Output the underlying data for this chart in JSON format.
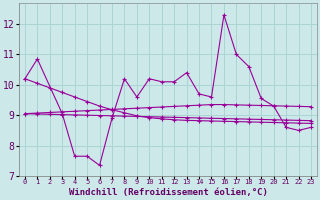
{
  "x": [
    0,
    1,
    2,
    3,
    4,
    5,
    6,
    7,
    8,
    9,
    10,
    11,
    12,
    13,
    14,
    15,
    16,
    17,
    18,
    19,
    20,
    21,
    22,
    23
  ],
  "y_main": [
    10.2,
    10.85,
    null,
    9.05,
    7.65,
    7.65,
    7.35,
    8.9,
    10.2,
    9.6,
    10.2,
    10.1,
    10.1,
    10.4,
    9.7,
    9.6,
    12.3,
    11.0,
    10.6,
    9.55,
    9.3,
    8.6,
    8.5,
    8.6
  ],
  "y_trend1": [
    10.2,
    10.05,
    9.9,
    9.75,
    9.6,
    9.45,
    9.3,
    9.18,
    9.08,
    8.98,
    8.92,
    8.88,
    8.85,
    8.83,
    8.82,
    8.81,
    8.8,
    8.79,
    8.78,
    8.77,
    8.76,
    8.75,
    8.74,
    8.73
  ],
  "y_trend2": [
    9.05,
    9.07,
    9.09,
    9.11,
    9.13,
    9.15,
    9.17,
    9.19,
    9.21,
    9.23,
    9.25,
    9.27,
    9.29,
    9.31,
    9.33,
    9.35,
    9.35,
    9.34,
    9.33,
    9.32,
    9.31,
    9.3,
    9.29,
    9.28
  ],
  "y_trend3": [
    9.05,
    9.04,
    9.03,
    9.02,
    9.01,
    9.0,
    8.99,
    8.98,
    8.97,
    8.96,
    8.95,
    8.94,
    8.93,
    8.92,
    8.91,
    8.9,
    8.89,
    8.88,
    8.87,
    8.86,
    8.85,
    8.84,
    8.83,
    8.82
  ],
  "background_color": "#cce8e8",
  "grid_color": "#aad4d4",
  "line_color": "#990099",
  "ylim": [
    7,
    12.7
  ],
  "yticks": [
    7,
    8,
    9,
    10,
    11,
    12
  ],
  "xlabel": "Windchill (Refroidissement éolien,°C)"
}
